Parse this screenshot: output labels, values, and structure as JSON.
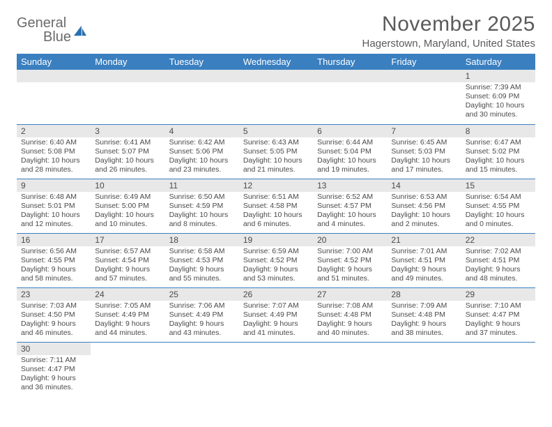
{
  "logo": {
    "word1": "General",
    "word2": "Blue"
  },
  "title": "November 2025",
  "location": "Hagerstown, Maryland, United States",
  "colors": {
    "header_bg": "#3a7fc0",
    "header_text": "#ffffff",
    "daynum_bg": "#e8e8e8",
    "border": "#3a7fc0",
    "text": "#4a4a4a",
    "title_text": "#5a5a5a",
    "logo_gray": "#6a6a6a",
    "logo_dark": "#3a3a3a",
    "sail_color": "#2a6fb0"
  },
  "day_headers": [
    "Sunday",
    "Monday",
    "Tuesday",
    "Wednesday",
    "Thursday",
    "Friday",
    "Saturday"
  ],
  "weeks": [
    [
      null,
      null,
      null,
      null,
      null,
      null,
      {
        "n": "1",
        "sr": "7:39 AM",
        "ss": "6:09 PM",
        "dl": "10 hours and 30 minutes."
      }
    ],
    [
      {
        "n": "2",
        "sr": "6:40 AM",
        "ss": "5:08 PM",
        "dl": "10 hours and 28 minutes."
      },
      {
        "n": "3",
        "sr": "6:41 AM",
        "ss": "5:07 PM",
        "dl": "10 hours and 26 minutes."
      },
      {
        "n": "4",
        "sr": "6:42 AM",
        "ss": "5:06 PM",
        "dl": "10 hours and 23 minutes."
      },
      {
        "n": "5",
        "sr": "6:43 AM",
        "ss": "5:05 PM",
        "dl": "10 hours and 21 minutes."
      },
      {
        "n": "6",
        "sr": "6:44 AM",
        "ss": "5:04 PM",
        "dl": "10 hours and 19 minutes."
      },
      {
        "n": "7",
        "sr": "6:45 AM",
        "ss": "5:03 PM",
        "dl": "10 hours and 17 minutes."
      },
      {
        "n": "8",
        "sr": "6:47 AM",
        "ss": "5:02 PM",
        "dl": "10 hours and 15 minutes."
      }
    ],
    [
      {
        "n": "9",
        "sr": "6:48 AM",
        "ss": "5:01 PM",
        "dl": "10 hours and 12 minutes."
      },
      {
        "n": "10",
        "sr": "6:49 AM",
        "ss": "5:00 PM",
        "dl": "10 hours and 10 minutes."
      },
      {
        "n": "11",
        "sr": "6:50 AM",
        "ss": "4:59 PM",
        "dl": "10 hours and 8 minutes."
      },
      {
        "n": "12",
        "sr": "6:51 AM",
        "ss": "4:58 PM",
        "dl": "10 hours and 6 minutes."
      },
      {
        "n": "13",
        "sr": "6:52 AM",
        "ss": "4:57 PM",
        "dl": "10 hours and 4 minutes."
      },
      {
        "n": "14",
        "sr": "6:53 AM",
        "ss": "4:56 PM",
        "dl": "10 hours and 2 minutes."
      },
      {
        "n": "15",
        "sr": "6:54 AM",
        "ss": "4:55 PM",
        "dl": "10 hours and 0 minutes."
      }
    ],
    [
      {
        "n": "16",
        "sr": "6:56 AM",
        "ss": "4:55 PM",
        "dl": "9 hours and 58 minutes."
      },
      {
        "n": "17",
        "sr": "6:57 AM",
        "ss": "4:54 PM",
        "dl": "9 hours and 57 minutes."
      },
      {
        "n": "18",
        "sr": "6:58 AM",
        "ss": "4:53 PM",
        "dl": "9 hours and 55 minutes."
      },
      {
        "n": "19",
        "sr": "6:59 AM",
        "ss": "4:52 PM",
        "dl": "9 hours and 53 minutes."
      },
      {
        "n": "20",
        "sr": "7:00 AM",
        "ss": "4:52 PM",
        "dl": "9 hours and 51 minutes."
      },
      {
        "n": "21",
        "sr": "7:01 AM",
        "ss": "4:51 PM",
        "dl": "9 hours and 49 minutes."
      },
      {
        "n": "22",
        "sr": "7:02 AM",
        "ss": "4:51 PM",
        "dl": "9 hours and 48 minutes."
      }
    ],
    [
      {
        "n": "23",
        "sr": "7:03 AM",
        "ss": "4:50 PM",
        "dl": "9 hours and 46 minutes."
      },
      {
        "n": "24",
        "sr": "7:05 AM",
        "ss": "4:49 PM",
        "dl": "9 hours and 44 minutes."
      },
      {
        "n": "25",
        "sr": "7:06 AM",
        "ss": "4:49 PM",
        "dl": "9 hours and 43 minutes."
      },
      {
        "n": "26",
        "sr": "7:07 AM",
        "ss": "4:49 PM",
        "dl": "9 hours and 41 minutes."
      },
      {
        "n": "27",
        "sr": "7:08 AM",
        "ss": "4:48 PM",
        "dl": "9 hours and 40 minutes."
      },
      {
        "n": "28",
        "sr": "7:09 AM",
        "ss": "4:48 PM",
        "dl": "9 hours and 38 minutes."
      },
      {
        "n": "29",
        "sr": "7:10 AM",
        "ss": "4:47 PM",
        "dl": "9 hours and 37 minutes."
      }
    ],
    [
      {
        "n": "30",
        "sr": "7:11 AM",
        "ss": "4:47 PM",
        "dl": "9 hours and 36 minutes."
      },
      null,
      null,
      null,
      null,
      null,
      null
    ]
  ],
  "labels": {
    "sunrise": "Sunrise:",
    "sunset": "Sunset:",
    "daylight": "Daylight:"
  }
}
